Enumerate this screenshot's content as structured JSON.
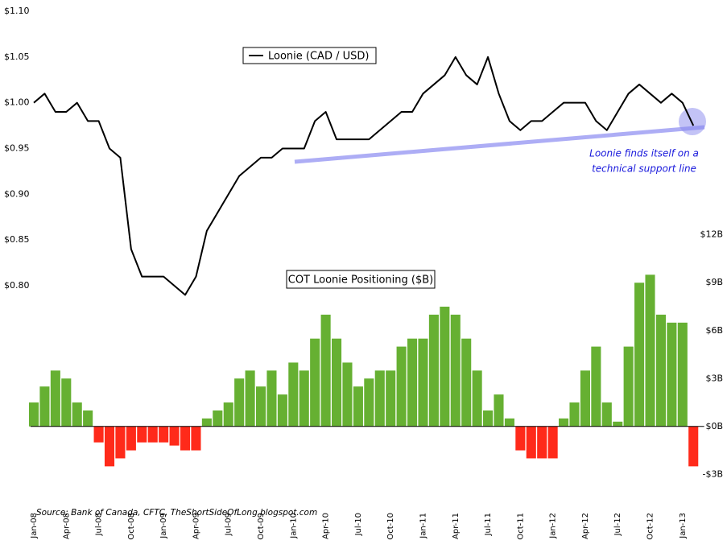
{
  "chart_data": {
    "type": "line_bar",
    "categories": [
      "Jan-08",
      null,
      null,
      "Apr-08",
      null,
      null,
      "Jul-08",
      null,
      null,
      "Oct-08",
      null,
      null,
      "Jan-09",
      null,
      null,
      "Apr-09",
      null,
      null,
      "Jul-09",
      null,
      null,
      "Oct-09",
      null,
      null,
      "Jan-10",
      null,
      null,
      "Apr-10",
      null,
      null,
      "Jul-10",
      null,
      null,
      "Oct-10",
      null,
      null,
      "Jan-11",
      null,
      null,
      "Apr-11",
      null,
      null,
      "Jul-11",
      null,
      null,
      "Oct-11",
      null,
      null,
      "Jan-12",
      null,
      null,
      "Apr-12",
      null,
      null,
      "Jul-12",
      null,
      null,
      "Oct-12",
      null,
      null,
      "Jan-13",
      null
    ],
    "series": [
      {
        "name": "Loonie (CAD / USD)",
        "type": "line",
        "axis": "y",
        "color": "#000000",
        "values": [
          1.0,
          1.01,
          0.99,
          0.99,
          1.0,
          0.98,
          0.98,
          0.95,
          0.94,
          0.84,
          0.81,
          0.81,
          0.81,
          0.8,
          0.79,
          0.81,
          0.86,
          0.88,
          0.9,
          0.92,
          0.93,
          0.94,
          0.94,
          0.95,
          0.95,
          0.95,
          0.98,
          0.99,
          0.96,
          0.96,
          0.96,
          0.96,
          0.97,
          0.98,
          0.99,
          0.99,
          1.01,
          1.02,
          1.03,
          1.05,
          1.03,
          1.02,
          1.05,
          1.01,
          0.98,
          0.97,
          0.98,
          0.98,
          0.99,
          1.0,
          1.0,
          1.0,
          0.98,
          0.97,
          0.99,
          1.01,
          1.02,
          1.01,
          1.0,
          1.01,
          1.0,
          0.975
        ]
      },
      {
        "name": "COT Loonie Positioning ($B)",
        "type": "bar",
        "axis": "y2",
        "color": "#66b032",
        "negative_color": "#ff2a1a",
        "values": [
          1.5,
          2.5,
          3.5,
          3.0,
          1.5,
          1.0,
          -1.0,
          -2.5,
          -2.0,
          -1.5,
          -1.0,
          -1.0,
          -1.0,
          -1.2,
          -1.5,
          -1.5,
          0.5,
          1.0,
          1.5,
          3.0,
          3.5,
          2.5,
          3.5,
          2.0,
          4.0,
          3.5,
          5.5,
          7.0,
          5.5,
          4.0,
          2.5,
          3.0,
          3.5,
          3.5,
          5.0,
          5.5,
          5.5,
          7.0,
          7.5,
          7.0,
          5.5,
          3.5,
          1.0,
          2.0,
          0.5,
          -1.5,
          -2.0,
          -2.0,
          -2.0,
          0.5,
          1.5,
          3.5,
          5.0,
          1.5,
          0.3,
          5.0,
          9.0,
          9.5,
          7.0,
          6.5,
          6.5,
          -2.5
        ]
      }
    ],
    "ylim": [
      0.5625,
      1.1
    ],
    "yticks": [
      {
        "value": 1.1,
        "label": "$1.10"
      },
      {
        "value": 1.05,
        "label": "$1.05"
      },
      {
        "value": 1.0,
        "label": "$1.00"
      },
      {
        "value": 0.95,
        "label": "$0.95"
      },
      {
        "value": 0.9,
        "label": "$0.90"
      },
      {
        "value": 0.85,
        "label": "$0.85"
      },
      {
        "value": 0.8,
        "label": "$0.80"
      }
    ],
    "y2lim": [
      -4.8,
      26
    ],
    "y2ticks": [
      {
        "value": 12,
        "label": "$12B"
      },
      {
        "value": 9,
        "label": "$9B"
      },
      {
        "value": 6,
        "label": "$6B"
      },
      {
        "value": 3,
        "label": "$3B"
      },
      {
        "value": 0,
        "label": "$0B"
      },
      {
        "value": -3,
        "label": "-$3B"
      }
    ],
    "annotations": [
      "Loonie finds itself on a",
      "technical support line"
    ],
    "source": "Source: Bank of Canada, CFTC, TheShortSideOfLong.blogspot.com"
  }
}
